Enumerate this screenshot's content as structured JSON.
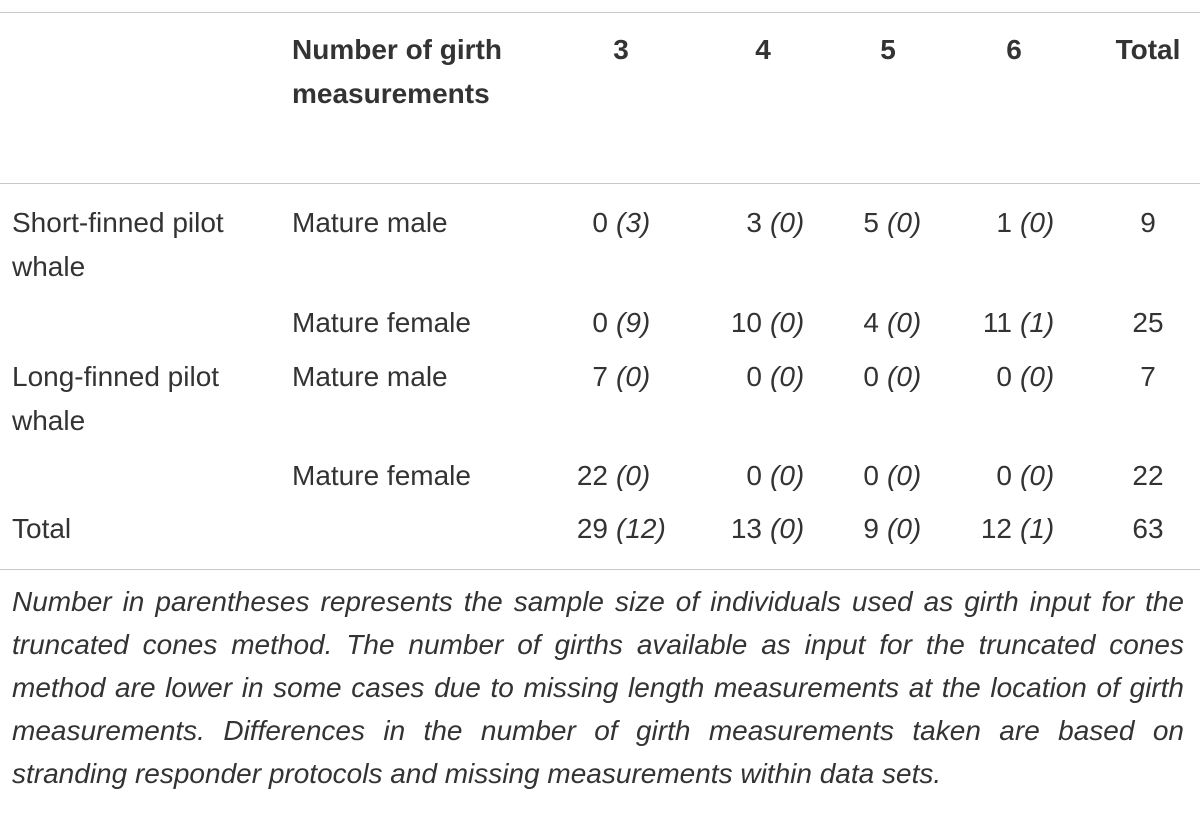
{
  "table": {
    "header": {
      "group": "Number of girth measurements",
      "columns": [
        "3",
        "4",
        "5",
        "6"
      ],
      "total": "Total"
    },
    "rows": [
      {
        "species": "Short-finned pilot whale",
        "group": "Mature male",
        "cells": [
          [
            "0",
            "(3)"
          ],
          [
            "3",
            "(0)"
          ],
          [
            "5",
            "(0)"
          ],
          [
            "1",
            "(0)"
          ]
        ],
        "total": "9"
      },
      {
        "group": "Mature female",
        "cells": [
          [
            "0",
            "(9)"
          ],
          [
            "10",
            "(0)"
          ],
          [
            "4",
            "(0)"
          ],
          [
            "11",
            "(1)"
          ]
        ],
        "total": "25"
      },
      {
        "species": "Long-finned pilot whale",
        "group": "Mature male",
        "cells": [
          [
            "7",
            "(0)"
          ],
          [
            "0",
            "(0)"
          ],
          [
            "0",
            "(0)"
          ],
          [
            "0",
            "(0)"
          ]
        ],
        "total": "7"
      },
      {
        "group": "Mature female",
        "cells": [
          [
            "22",
            "(0)"
          ],
          [
            "0",
            "(0)"
          ],
          [
            "0",
            "(0)"
          ],
          [
            "0",
            "(0)"
          ]
        ],
        "total": "22"
      },
      {
        "species": "Total",
        "cells": [
          [
            "29",
            "(12)"
          ],
          [
            "13",
            "(0)"
          ],
          [
            "9",
            "(0)"
          ],
          [
            "12",
            "(1)"
          ]
        ],
        "total": "63"
      }
    ],
    "note": "Number in parentheses represents the sample size of individuals used as girth input for the truncated cones method. The number of girths available as input for the truncated cones method are lower in some cases due to missing length measurements at the location of girth measurements. Differences in the number of girth measurements taken are based on stranding responder protocols and missing measurements within data sets."
  }
}
